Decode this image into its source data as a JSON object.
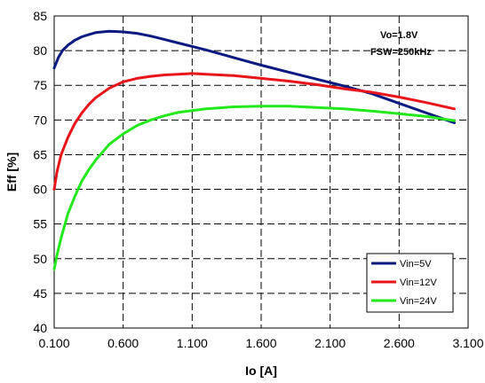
{
  "chart_data": {
    "type": "line",
    "xlabel": "Io [A]",
    "ylabel": "Eff [%]",
    "xlim": [
      0.1,
      3.1
    ],
    "ylim": [
      40,
      85
    ],
    "x_ticks": [
      "0.100",
      "0.600",
      "1.100",
      "1.600",
      "2.100",
      "2.600",
      "3.100"
    ],
    "y_ticks": [
      "40",
      "45",
      "50",
      "55",
      "60",
      "65",
      "70",
      "75",
      "80",
      "85"
    ],
    "grid": true,
    "annotations": [
      "Vo=1.8V",
      "FSW=250kHz"
    ],
    "legend_position": "bottom-right",
    "series": [
      {
        "name": "Vin=5V",
        "color": "#0a1a80",
        "points": [
          [
            0.1,
            77.5
          ],
          [
            0.13,
            79.0
          ],
          [
            0.16,
            80.0
          ],
          [
            0.2,
            80.8
          ],
          [
            0.25,
            81.5
          ],
          [
            0.3,
            82.0
          ],
          [
            0.35,
            82.3
          ],
          [
            0.4,
            82.6
          ],
          [
            0.5,
            82.8
          ],
          [
            0.6,
            82.7
          ],
          [
            0.7,
            82.5
          ],
          [
            0.8,
            82.1
          ],
          [
            0.9,
            81.6
          ],
          [
            1.0,
            81.1
          ],
          [
            1.2,
            80.1
          ],
          [
            1.4,
            79.0
          ],
          [
            1.6,
            77.9
          ],
          [
            1.8,
            76.9
          ],
          [
            2.0,
            75.9
          ],
          [
            2.2,
            74.9
          ],
          [
            2.4,
            73.8
          ],
          [
            2.6,
            72.4
          ],
          [
            2.8,
            71.0
          ],
          [
            3.0,
            69.6
          ]
        ]
      },
      {
        "name": "Vin=12V",
        "color": "#e8161b",
        "points": [
          [
            0.1,
            60.0
          ],
          [
            0.12,
            62.5
          ],
          [
            0.15,
            65.0
          ],
          [
            0.2,
            67.5
          ],
          [
            0.25,
            69.5
          ],
          [
            0.3,
            71.0
          ],
          [
            0.35,
            72.2
          ],
          [
            0.4,
            73.2
          ],
          [
            0.5,
            74.6
          ],
          [
            0.6,
            75.5
          ],
          [
            0.7,
            76.0
          ],
          [
            0.8,
            76.3
          ],
          [
            0.9,
            76.5
          ],
          [
            1.0,
            76.6
          ],
          [
            1.1,
            76.7
          ],
          [
            1.2,
            76.6
          ],
          [
            1.4,
            76.4
          ],
          [
            1.6,
            76.0
          ],
          [
            1.8,
            75.6
          ],
          [
            2.0,
            75.1
          ],
          [
            2.2,
            74.5
          ],
          [
            2.4,
            74.0
          ],
          [
            2.6,
            73.3
          ],
          [
            2.8,
            72.5
          ],
          [
            3.0,
            71.6
          ]
        ]
      },
      {
        "name": "Vin=24V",
        "color": "#22e81c",
        "points": [
          [
            0.1,
            48.5
          ],
          [
            0.12,
            50.5
          ],
          [
            0.15,
            53.0
          ],
          [
            0.2,
            56.5
          ],
          [
            0.25,
            59.0
          ],
          [
            0.3,
            61.2
          ],
          [
            0.35,
            62.8
          ],
          [
            0.4,
            64.2
          ],
          [
            0.5,
            66.5
          ],
          [
            0.6,
            68.0
          ],
          [
            0.7,
            69.2
          ],
          [
            0.8,
            70.0
          ],
          [
            0.9,
            70.6
          ],
          [
            1.0,
            71.1
          ],
          [
            1.2,
            71.6
          ],
          [
            1.4,
            71.9
          ],
          [
            1.6,
            72.0
          ],
          [
            1.8,
            72.0
          ],
          [
            2.0,
            71.8
          ],
          [
            2.2,
            71.6
          ],
          [
            2.4,
            71.3
          ],
          [
            2.6,
            70.9
          ],
          [
            2.8,
            70.5
          ],
          [
            3.0,
            69.9
          ]
        ]
      }
    ]
  }
}
